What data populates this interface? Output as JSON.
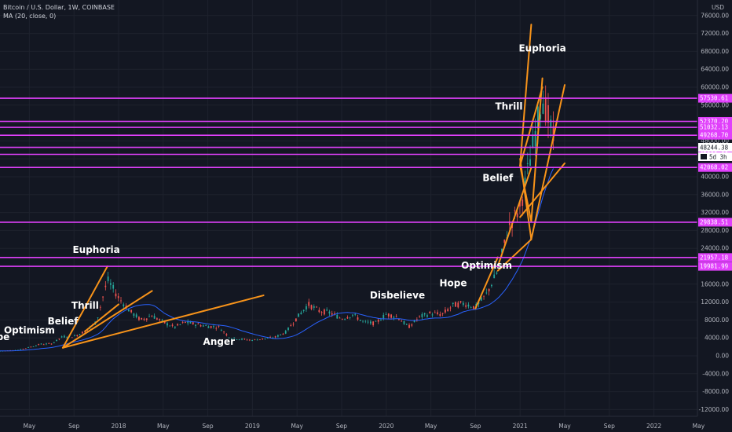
{
  "header": {
    "symbol": "Bitcoin / U.S. Dollar, 1W, COINBASE",
    "indicator": "MA (20, close, 0)"
  },
  "price_axis": {
    "currency": "USD",
    "ticks": [
      "76000.00",
      "72000.00",
      "68000.00",
      "64000.00",
      "60000.00",
      "56000.00",
      "52000.00",
      "48000.00",
      "44000.00",
      "40000.00",
      "36000.00",
      "32000.00",
      "28000.00",
      "24000.00",
      "20000.00",
      "16000.00",
      "12000.00",
      "8000.00",
      "4000.00",
      "0.00",
      "-4000.00",
      "-8000.00",
      "-12000.00"
    ],
    "current_price": "48244.38",
    "countdown": "5d 3h"
  },
  "time_axis": {
    "ticks": [
      "May",
      "Sep",
      "2018",
      "May",
      "Sep",
      "2019",
      "May",
      "Sep",
      "2020",
      "May",
      "Sep",
      "2021",
      "May",
      "Sep",
      "2022",
      "May"
    ]
  },
  "colors": {
    "background": "#131722",
    "grid": "#1e222d",
    "candle_up": "#26a69a",
    "candle_down": "#ef5350",
    "ma_line": "#2962ff",
    "trend_line": "#f7931a",
    "horizontal_line": "#e040fb"
  },
  "chart_data": {
    "type": "candlestick",
    "title": "Bitcoin / U.S. Dollar, 1W, COINBASE",
    "ylim": [
      -14000,
      78000
    ],
    "horizontal_levels": [
      {
        "value": 57530.61,
        "label": "57530.61"
      },
      {
        "value": 52370.2,
        "label": "52370.20"
      },
      {
        "value": 51032.13,
        "label": "51032.13"
      },
      {
        "value": 49268.7,
        "label": "49268.70"
      },
      {
        "value": 46562.87,
        "label": "46562.87"
      },
      {
        "value": 45000.0,
        "label": "45000.00"
      },
      {
        "value": 42068.02,
        "label": "42068.02"
      },
      {
        "value": 29838.51,
        "label": "29838.51"
      },
      {
        "value": 21957.18,
        "label": "21957.18"
      },
      {
        "value": 19981.99,
        "label": "19981.99"
      }
    ],
    "phase_labels": [
      {
        "text": "Hope",
        "date": "2017-02",
        "price": 3500
      },
      {
        "text": "Optimism",
        "date": "2017-05",
        "price": 5000
      },
      {
        "text": "Belief",
        "date": "2017-08",
        "price": 7000
      },
      {
        "text": "Thrill",
        "date": "2017-10",
        "price": 10500
      },
      {
        "text": "Euphoria",
        "date": "2017-11",
        "price": 23000
      },
      {
        "text": "Anger",
        "date": "2018-10",
        "price": 2500
      },
      {
        "text": "Disbelieve",
        "date": "2020-02",
        "price": 12800
      },
      {
        "text": "Hope",
        "date": "2020-07",
        "price": 15500
      },
      {
        "text": "Optimism",
        "date": "2020-10",
        "price": 19500
      },
      {
        "text": "Belief",
        "date": "2020-11",
        "price": 39000
      },
      {
        "text": "Thrill",
        "date": "2020-12",
        "price": 55000
      },
      {
        "text": "Euphoria",
        "date": "2021-03",
        "price": 68000
      }
    ],
    "price_series": [
      [
        "2017-01",
        950
      ],
      [
        "2017-02",
        1050
      ],
      [
        "2017-03",
        1150
      ],
      [
        "2017-04",
        1300
      ],
      [
        "2017-05",
        1900
      ],
      [
        "2017-06",
        2600
      ],
      [
        "2017-07",
        2700
      ],
      [
        "2017-08",
        4300
      ],
      [
        "2017-09",
        4300
      ],
      [
        "2017-10",
        5500
      ],
      [
        "2017-11",
        7500
      ],
      [
        "2017-12",
        17000
      ],
      [
        "2018-01",
        13000
      ],
      [
        "2018-02",
        10000
      ],
      [
        "2018-03",
        8000
      ],
      [
        "2018-04",
        9000
      ],
      [
        "2018-05",
        7500
      ],
      [
        "2018-06",
        6400
      ],
      [
        "2018-07",
        7500
      ],
      [
        "2018-08",
        7000
      ],
      [
        "2018-09",
        6600
      ],
      [
        "2018-10",
        6400
      ],
      [
        "2018-11",
        4000
      ],
      [
        "2018-12",
        3700
      ],
      [
        "2019-01",
        3500
      ],
      [
        "2019-02",
        3800
      ],
      [
        "2019-03",
        4100
      ],
      [
        "2019-04",
        5300
      ],
      [
        "2019-05",
        8500
      ],
      [
        "2019-06",
        11500
      ],
      [
        "2019-07",
        10000
      ],
      [
        "2019-08",
        9600
      ],
      [
        "2019-09",
        8300
      ],
      [
        "2019-10",
        9200
      ],
      [
        "2019-11",
        7500
      ],
      [
        "2019-12",
        7200
      ],
      [
        "2020-01",
        9300
      ],
      [
        "2020-02",
        8700
      ],
      [
        "2020-03",
        6400
      ],
      [
        "2020-04",
        8700
      ],
      [
        "2020-05",
        9500
      ],
      [
        "2020-06",
        9200
      ],
      [
        "2020-07",
        11300
      ],
      [
        "2020-08",
        11700
      ],
      [
        "2020-09",
        10800
      ],
      [
        "2020-10",
        13800
      ],
      [
        "2020-11",
        19000
      ],
      [
        "2020-12",
        29000
      ],
      [
        "2021-01",
        33000
      ],
      [
        "2021-02",
        45000
      ],
      [
        "2021-03",
        58000
      ],
      [
        "2021-04",
        48244
      ]
    ]
  }
}
